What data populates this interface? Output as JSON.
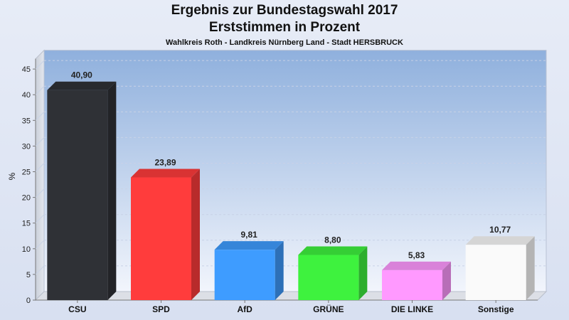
{
  "header": {
    "title": "Ergebnis zur Bundestagswahl 2017",
    "subtitle": "Erststimmen in Prozent",
    "region": "Wahlkreis Roth - Landkreis Nürnberg Land - Stadt HERSBRUCK"
  },
  "chart_data": {
    "type": "bar",
    "title": "Ergebnis zur Bundestagswahl 2017",
    "subtitle": "Erststimmen in Prozent",
    "xlabel": "",
    "ylabel": "%",
    "ylim": [
      0,
      47
    ],
    "yticks": [
      0,
      5,
      10,
      15,
      20,
      25,
      30,
      35,
      40,
      45
    ],
    "grid": true,
    "categories": [
      "CSU",
      "SPD",
      "AfD",
      "GRÜNE",
      "DIE LINKE",
      "Sonstige"
    ],
    "values": [
      40.9,
      23.89,
      9.81,
      8.8,
      5.83,
      10.77
    ],
    "value_labels": [
      "40,90",
      "23,89",
      "9,81",
      "8,80",
      "5,83",
      "10,77"
    ],
    "colors": [
      "#2f3136",
      "#ff3c3c",
      "#3e9cff",
      "#3ef23e",
      "#ff99ff",
      "#fafafa"
    ]
  }
}
